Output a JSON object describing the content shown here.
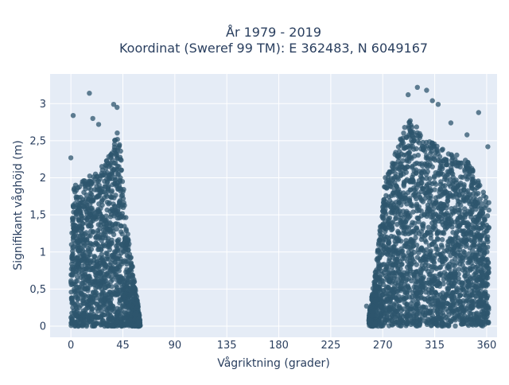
{
  "chart_data": {
    "type": "scatter",
    "title_line1": "År 1979 - 2019",
    "title_line2": "Koordinat (Sweref 99 TM): E 362483, N 6049167",
    "xlabel": "Vågriktning (grader)",
    "ylabel": "Signifikant våghöjd (m)",
    "xlim": [
      -18,
      369
    ],
    "ylim": [
      -0.15,
      3.4
    ],
    "x_ticks": [
      0,
      45,
      90,
      135,
      180,
      225,
      270,
      315,
      360
    ],
    "x_tick_labels": [
      "0",
      "45",
      "90",
      "135",
      "180",
      "225",
      "270",
      "315",
      "360"
    ],
    "y_ticks": [
      0,
      0.5,
      1,
      1.5,
      2,
      2.5,
      3
    ],
    "y_tick_labels": [
      "0",
      "0,5",
      "1",
      "1,5",
      "2",
      "2,5",
      "3"
    ],
    "grid": true,
    "plot_background": "#e5ecf6",
    "marker_color": "#2e566e",
    "marker_opacity": 0.75,
    "clusters": [
      {
        "name": "",
        "x_range": [
          0,
          60
        ],
        "y_range": [
          0,
          3.1
        ],
        "peak_x": 40,
        "peak_y": 2.85
      },
      {
        "name": "",
        "x_range": [
          258,
          362
        ],
        "y_range": [
          0,
          3.25
        ],
        "peak_x": 293,
        "peak_y": 3.22
      }
    ],
    "outliers": [
      {
        "x": 2,
        "y": 2.84
      },
      {
        "x": 16,
        "y": 3.14
      },
      {
        "x": 37,
        "y": 2.99
      },
      {
        "x": 40,
        "y": 2.95
      },
      {
        "x": 308,
        "y": 3.18
      },
      {
        "x": 300,
        "y": 3.22
      },
      {
        "x": 313,
        "y": 3.04
      },
      {
        "x": 318,
        "y": 2.99
      },
      {
        "x": 353,
        "y": 2.88
      },
      {
        "x": 292,
        "y": 3.12
      },
      {
        "x": 329,
        "y": 2.74
      },
      {
        "x": 343,
        "y": 2.58
      },
      {
        "x": 361,
        "y": 2.42
      },
      {
        "x": 0,
        "y": 2.27
      },
      {
        "x": 24,
        "y": 2.72
      },
      {
        "x": 19,
        "y": 2.8
      },
      {
        "x": 268,
        "y": 1.28
      },
      {
        "x": 270,
        "y": 1.55
      },
      {
        "x": 256,
        "y": 0.27
      }
    ]
  }
}
